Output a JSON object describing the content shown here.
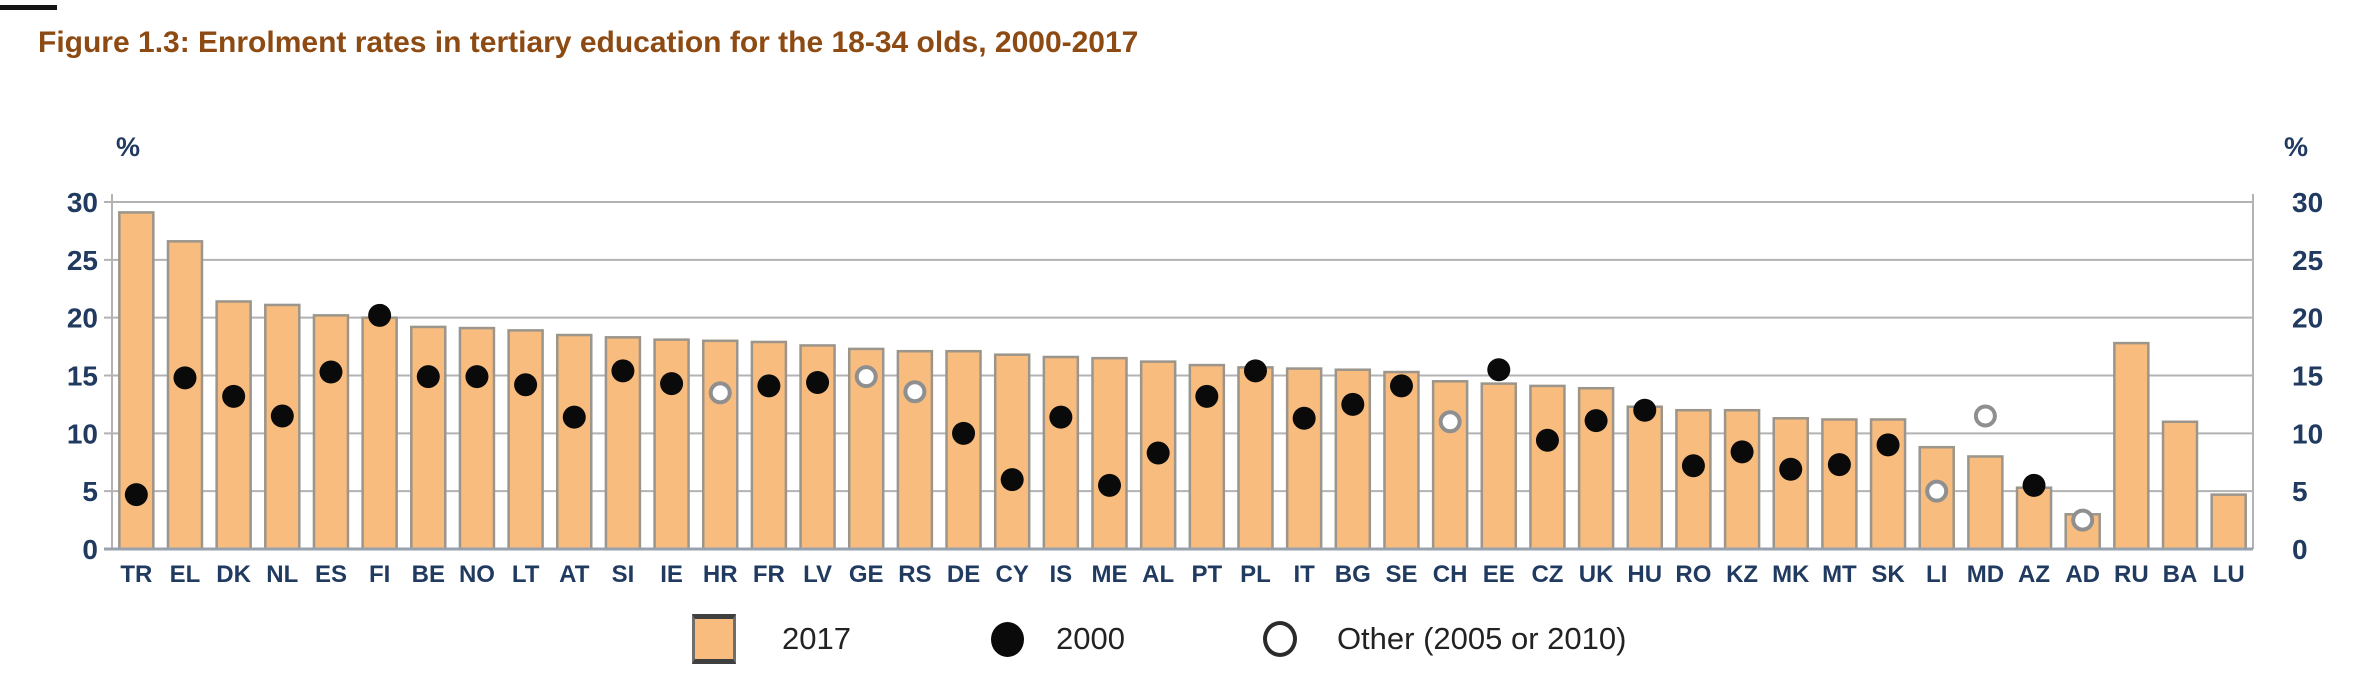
{
  "title": "Figure 1.3: Enrolment rates in tertiary education for the 18-34 olds, 2000-2017",
  "colors": {
    "title_text": "#8d4a12",
    "axis_text": "#203a60",
    "bar_fill": "#f8bc7e",
    "bar_border": "#9b958b",
    "gridline": "#b3b3b3",
    "baseline": "#98a2ad",
    "dot_filled": "#0a0a0a",
    "dot_open_stroke": "#8f8f8f",
    "legend_text": "#222222"
  },
  "axis": {
    "unit_label": "%",
    "yticks": [
      0,
      5,
      10,
      15,
      20,
      25,
      30
    ],
    "ymax": 30
  },
  "legend": {
    "items": [
      {
        "icon": "bar-swatch",
        "label": "2017"
      },
      {
        "icon": "filled-circle",
        "label": "2000"
      },
      {
        "icon": "open-circle",
        "label": "Other (2005 or 2010)"
      }
    ]
  },
  "chart_data": {
    "type": "bar",
    "title": "Figure 1.3: Enrolment rates in tertiary education for the 18-34 olds, 2000-2017",
    "xlabel": "",
    "ylabel": "%",
    "ylim": [
      0,
      30
    ],
    "yticks": [
      0,
      5,
      10,
      15,
      20,
      25,
      30
    ],
    "grid": true,
    "legend_position": "bottom",
    "categories": [
      "TR",
      "EL",
      "DK",
      "NL",
      "ES",
      "FI",
      "BE",
      "NO",
      "LT",
      "AT",
      "SI",
      "IE",
      "HR",
      "FR",
      "LV",
      "GE",
      "RS",
      "DE",
      "CY",
      "IS",
      "ME",
      "AL",
      "PT",
      "PL",
      "IT",
      "BG",
      "SE",
      "CH",
      "EE",
      "CZ",
      "UK",
      "HU",
      "RO",
      "KZ",
      "MK",
      "MT",
      "SK",
      "LI",
      "MD",
      "AZ",
      "AD",
      "RU",
      "BA",
      "LU"
    ],
    "series": [
      {
        "name": "2017",
        "style": "bar",
        "values": [
          29.1,
          26.6,
          21.4,
          21.1,
          20.2,
          20.0,
          19.2,
          19.1,
          18.9,
          18.5,
          18.3,
          18.1,
          18.0,
          17.9,
          17.6,
          17.3,
          17.1,
          17.1,
          16.8,
          16.6,
          16.5,
          16.2,
          15.9,
          15.7,
          15.6,
          15.5,
          15.3,
          14.5,
          14.3,
          14.1,
          13.9,
          12.3,
          12.0,
          12.0,
          11.3,
          11.2,
          11.2,
          8.8,
          8.0,
          5.3,
          3.0,
          17.8,
          11.0,
          4.7
        ]
      },
      {
        "name": "2000",
        "style": "filled-dot",
        "values": [
          4.7,
          14.8,
          13.2,
          11.5,
          15.3,
          20.2,
          14.9,
          14.9,
          14.2,
          11.4,
          15.4,
          14.3,
          null,
          14.1,
          14.4,
          null,
          null,
          10.0,
          6.0,
          11.4,
          5.5,
          8.3,
          13.2,
          15.4,
          11.3,
          12.5,
          14.1,
          null,
          15.5,
          9.4,
          11.1,
          12.0,
          7.2,
          8.4,
          6.9,
          7.3,
          9.0,
          null,
          null,
          5.5,
          null,
          null,
          null,
          null
        ]
      },
      {
        "name": "Other (2005 or 2010)",
        "style": "open-dot",
        "values": [
          null,
          null,
          null,
          null,
          null,
          null,
          null,
          null,
          null,
          null,
          null,
          null,
          13.5,
          null,
          null,
          14.9,
          13.6,
          null,
          null,
          null,
          null,
          null,
          null,
          null,
          null,
          null,
          null,
          11.0,
          null,
          null,
          null,
          null,
          null,
          null,
          null,
          null,
          null,
          5.0,
          11.5,
          null,
          2.5,
          null,
          null,
          null
        ]
      }
    ]
  }
}
